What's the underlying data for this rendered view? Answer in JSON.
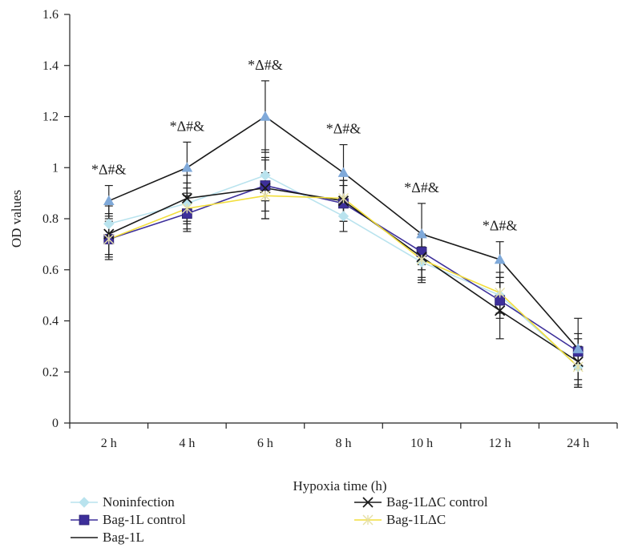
{
  "chart_data": {
    "type": "line",
    "xlabel": "Hypoxia time (h)",
    "ylabel": "OD values",
    "categories": [
      "2 h",
      "4 h",
      "6 h",
      "8 h",
      "10 h",
      "12 h",
      "24 h"
    ],
    "ylim": [
      0,
      1.6
    ],
    "yticks": [
      "0",
      "0.2",
      "0.4",
      "0.6",
      "0.8",
      "1",
      "1.2",
      "1.4",
      "1.6"
    ],
    "grid": false,
    "legend_position": "bottom",
    "annotations": [
      {
        "category": "2 h",
        "text": "*Δ#&"
      },
      {
        "category": "4 h",
        "text": "*Δ#&"
      },
      {
        "category": "6 h",
        "text": "*Δ#&"
      },
      {
        "category": "8 h",
        "text": "*Δ#&"
      },
      {
        "category": "10 h",
        "text": "*Δ#&"
      },
      {
        "category": "12 h",
        "text": "*Δ#&"
      }
    ],
    "series": [
      {
        "name": "Noninfection",
        "color": "#b9e3ee",
        "marker": "diamond",
        "values": [
          0.78,
          0.86,
          0.97,
          0.81,
          0.63,
          0.5,
          0.22
        ],
        "errors": [
          0.07,
          0.08,
          0.1,
          0.06,
          0.06,
          0.07,
          0.08
        ]
      },
      {
        "name": "Bag-1L control",
        "color": "#3d2f9a",
        "marker": "square",
        "values": [
          0.72,
          0.82,
          0.93,
          0.86,
          0.67,
          0.48,
          0.28
        ],
        "errors": [
          0.08,
          0.07,
          0.1,
          0.07,
          0.07,
          0.07,
          0.07
        ]
      },
      {
        "name": "Bag-1L",
        "color": "#1a1a1a",
        "marker": "triangle",
        "marker_color": "#7fa9d9",
        "values": [
          0.87,
          1.0,
          1.2,
          0.98,
          0.74,
          0.64,
          0.29
        ],
        "errors": [
          0.06,
          0.1,
          0.14,
          0.11,
          0.12,
          0.07,
          0.12
        ]
      },
      {
        "name": "Bag-1LΔC control",
        "color": "#1a1a1a",
        "marker": "x",
        "values": [
          0.74,
          0.88,
          0.92,
          0.87,
          0.65,
          0.44,
          0.24
        ],
        "errors": [
          0.08,
          0.09,
          0.12,
          0.08,
          0.09,
          0.11,
          0.09
        ]
      },
      {
        "name": "Bag-1LΔC",
        "color": "#f2de3c",
        "marker": "star",
        "values": [
          0.72,
          0.84,
          0.89,
          0.88,
          0.64,
          0.51,
          0.22
        ],
        "errors": [
          0.07,
          0.08,
          0.09,
          0.07,
          0.09,
          0.08,
          0.08
        ]
      }
    ]
  }
}
